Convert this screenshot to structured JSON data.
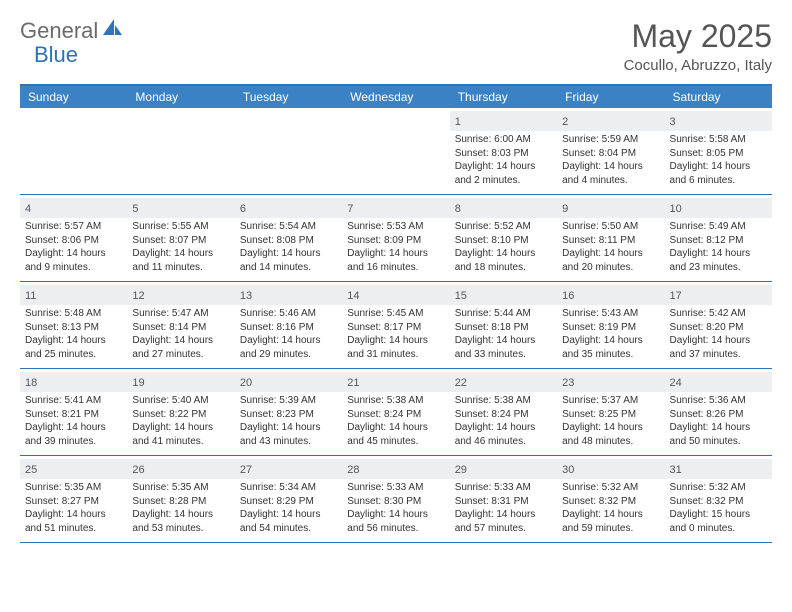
{
  "logo": {
    "text1": "General",
    "text2": "Blue"
  },
  "title": "May 2025",
  "location": "Cocullo, Abruzzo, Italy",
  "colors": {
    "header_bg": "#3b82c4",
    "header_text": "#ffffff",
    "border": "#2f73b6",
    "daynum_bg": "#eceff1",
    "text": "#333333",
    "logo_gray": "#6b6b6b",
    "logo_blue": "#2f73b6"
  },
  "daynames": [
    "Sunday",
    "Monday",
    "Tuesday",
    "Wednesday",
    "Thursday",
    "Friday",
    "Saturday"
  ],
  "weeks": [
    [
      {
        "n": "",
        "sr": "",
        "ss": "",
        "d1": "",
        "d2": ""
      },
      {
        "n": "",
        "sr": "",
        "ss": "",
        "d1": "",
        "d2": ""
      },
      {
        "n": "",
        "sr": "",
        "ss": "",
        "d1": "",
        "d2": ""
      },
      {
        "n": "",
        "sr": "",
        "ss": "",
        "d1": "",
        "d2": ""
      },
      {
        "n": "1",
        "sr": "Sunrise: 6:00 AM",
        "ss": "Sunset: 8:03 PM",
        "d1": "Daylight: 14 hours",
        "d2": "and 2 minutes."
      },
      {
        "n": "2",
        "sr": "Sunrise: 5:59 AM",
        "ss": "Sunset: 8:04 PM",
        "d1": "Daylight: 14 hours",
        "d2": "and 4 minutes."
      },
      {
        "n": "3",
        "sr": "Sunrise: 5:58 AM",
        "ss": "Sunset: 8:05 PM",
        "d1": "Daylight: 14 hours",
        "d2": "and 6 minutes."
      }
    ],
    [
      {
        "n": "4",
        "sr": "Sunrise: 5:57 AM",
        "ss": "Sunset: 8:06 PM",
        "d1": "Daylight: 14 hours",
        "d2": "and 9 minutes."
      },
      {
        "n": "5",
        "sr": "Sunrise: 5:55 AM",
        "ss": "Sunset: 8:07 PM",
        "d1": "Daylight: 14 hours",
        "d2": "and 11 minutes."
      },
      {
        "n": "6",
        "sr": "Sunrise: 5:54 AM",
        "ss": "Sunset: 8:08 PM",
        "d1": "Daylight: 14 hours",
        "d2": "and 14 minutes."
      },
      {
        "n": "7",
        "sr": "Sunrise: 5:53 AM",
        "ss": "Sunset: 8:09 PM",
        "d1": "Daylight: 14 hours",
        "d2": "and 16 minutes."
      },
      {
        "n": "8",
        "sr": "Sunrise: 5:52 AM",
        "ss": "Sunset: 8:10 PM",
        "d1": "Daylight: 14 hours",
        "d2": "and 18 minutes."
      },
      {
        "n": "9",
        "sr": "Sunrise: 5:50 AM",
        "ss": "Sunset: 8:11 PM",
        "d1": "Daylight: 14 hours",
        "d2": "and 20 minutes."
      },
      {
        "n": "10",
        "sr": "Sunrise: 5:49 AM",
        "ss": "Sunset: 8:12 PM",
        "d1": "Daylight: 14 hours",
        "d2": "and 23 minutes."
      }
    ],
    [
      {
        "n": "11",
        "sr": "Sunrise: 5:48 AM",
        "ss": "Sunset: 8:13 PM",
        "d1": "Daylight: 14 hours",
        "d2": "and 25 minutes."
      },
      {
        "n": "12",
        "sr": "Sunrise: 5:47 AM",
        "ss": "Sunset: 8:14 PM",
        "d1": "Daylight: 14 hours",
        "d2": "and 27 minutes."
      },
      {
        "n": "13",
        "sr": "Sunrise: 5:46 AM",
        "ss": "Sunset: 8:16 PM",
        "d1": "Daylight: 14 hours",
        "d2": "and 29 minutes."
      },
      {
        "n": "14",
        "sr": "Sunrise: 5:45 AM",
        "ss": "Sunset: 8:17 PM",
        "d1": "Daylight: 14 hours",
        "d2": "and 31 minutes."
      },
      {
        "n": "15",
        "sr": "Sunrise: 5:44 AM",
        "ss": "Sunset: 8:18 PM",
        "d1": "Daylight: 14 hours",
        "d2": "and 33 minutes."
      },
      {
        "n": "16",
        "sr": "Sunrise: 5:43 AM",
        "ss": "Sunset: 8:19 PM",
        "d1": "Daylight: 14 hours",
        "d2": "and 35 minutes."
      },
      {
        "n": "17",
        "sr": "Sunrise: 5:42 AM",
        "ss": "Sunset: 8:20 PM",
        "d1": "Daylight: 14 hours",
        "d2": "and 37 minutes."
      }
    ],
    [
      {
        "n": "18",
        "sr": "Sunrise: 5:41 AM",
        "ss": "Sunset: 8:21 PM",
        "d1": "Daylight: 14 hours",
        "d2": "and 39 minutes."
      },
      {
        "n": "19",
        "sr": "Sunrise: 5:40 AM",
        "ss": "Sunset: 8:22 PM",
        "d1": "Daylight: 14 hours",
        "d2": "and 41 minutes."
      },
      {
        "n": "20",
        "sr": "Sunrise: 5:39 AM",
        "ss": "Sunset: 8:23 PM",
        "d1": "Daylight: 14 hours",
        "d2": "and 43 minutes."
      },
      {
        "n": "21",
        "sr": "Sunrise: 5:38 AM",
        "ss": "Sunset: 8:24 PM",
        "d1": "Daylight: 14 hours",
        "d2": "and 45 minutes."
      },
      {
        "n": "22",
        "sr": "Sunrise: 5:38 AM",
        "ss": "Sunset: 8:24 PM",
        "d1": "Daylight: 14 hours",
        "d2": "and 46 minutes."
      },
      {
        "n": "23",
        "sr": "Sunrise: 5:37 AM",
        "ss": "Sunset: 8:25 PM",
        "d1": "Daylight: 14 hours",
        "d2": "and 48 minutes."
      },
      {
        "n": "24",
        "sr": "Sunrise: 5:36 AM",
        "ss": "Sunset: 8:26 PM",
        "d1": "Daylight: 14 hours",
        "d2": "and 50 minutes."
      }
    ],
    [
      {
        "n": "25",
        "sr": "Sunrise: 5:35 AM",
        "ss": "Sunset: 8:27 PM",
        "d1": "Daylight: 14 hours",
        "d2": "and 51 minutes."
      },
      {
        "n": "26",
        "sr": "Sunrise: 5:35 AM",
        "ss": "Sunset: 8:28 PM",
        "d1": "Daylight: 14 hours",
        "d2": "and 53 minutes."
      },
      {
        "n": "27",
        "sr": "Sunrise: 5:34 AM",
        "ss": "Sunset: 8:29 PM",
        "d1": "Daylight: 14 hours",
        "d2": "and 54 minutes."
      },
      {
        "n": "28",
        "sr": "Sunrise: 5:33 AM",
        "ss": "Sunset: 8:30 PM",
        "d1": "Daylight: 14 hours",
        "d2": "and 56 minutes."
      },
      {
        "n": "29",
        "sr": "Sunrise: 5:33 AM",
        "ss": "Sunset: 8:31 PM",
        "d1": "Daylight: 14 hours",
        "d2": "and 57 minutes."
      },
      {
        "n": "30",
        "sr": "Sunrise: 5:32 AM",
        "ss": "Sunset: 8:32 PM",
        "d1": "Daylight: 14 hours",
        "d2": "and 59 minutes."
      },
      {
        "n": "31",
        "sr": "Sunrise: 5:32 AM",
        "ss": "Sunset: 8:32 PM",
        "d1": "Daylight: 15 hours",
        "d2": "and 0 minutes."
      }
    ]
  ]
}
